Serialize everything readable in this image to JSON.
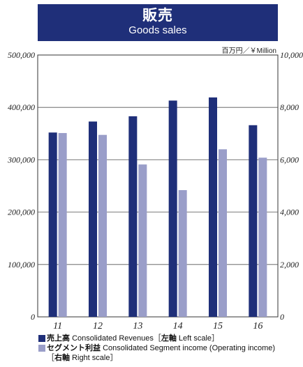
{
  "header": {
    "title": "販売",
    "subtitle": "Goods sales"
  },
  "unit_label": "百万円／￥Million",
  "legend": [
    {
      "ja": "売上高",
      "en": "Consolidated Revenues［",
      "ja_scale": "左軸",
      "en_scale": " Left scale］",
      "color": "#1f2f79"
    },
    {
      "ja": "セグメント利益",
      "en": "Consolidated Segment income (Operating income)",
      "line2_open": "［",
      "ja_scale": "右軸",
      "en_scale": " Right scale］",
      "color": "#9a9ec9"
    }
  ],
  "colors": {
    "revenue": "#1f2f79",
    "segment": "#9a9ec9",
    "header": "#1f2f79"
  },
  "chart_data": {
    "type": "bar",
    "categories": [
      "11",
      "12",
      "13",
      "14",
      "15",
      "16"
    ],
    "series": [
      {
        "name": "売上高 Consolidated Revenues［左軸 Left scale］",
        "axis": "left",
        "values": [
          352000,
          373000,
          383000,
          413000,
          419000,
          366000
        ]
      },
      {
        "name": "セグメント利益 Consolidated Segment income (Operating income)［右軸 Right scale］",
        "axis": "right",
        "values": [
          7020,
          6950,
          5820,
          4840,
          6400,
          6080
        ]
      }
    ],
    "left_axis": {
      "min": 0,
      "max": 500000,
      "ticks": [
        "0",
        "100,000",
        "200,000",
        "300,000",
        "400,000",
        "500,000"
      ],
      "tick_values": [
        0,
        100000,
        200000,
        300000,
        400000,
        500000
      ]
    },
    "right_axis": {
      "min": 0,
      "max": 10000,
      "ticks": [
        "0",
        "2,000",
        "4,000",
        "6,000",
        "8,000",
        "10,000"
      ],
      "tick_values": [
        0,
        2000,
        4000,
        6000,
        8000,
        10000
      ]
    },
    "grid": true,
    "legend_position": "bottom-left"
  }
}
